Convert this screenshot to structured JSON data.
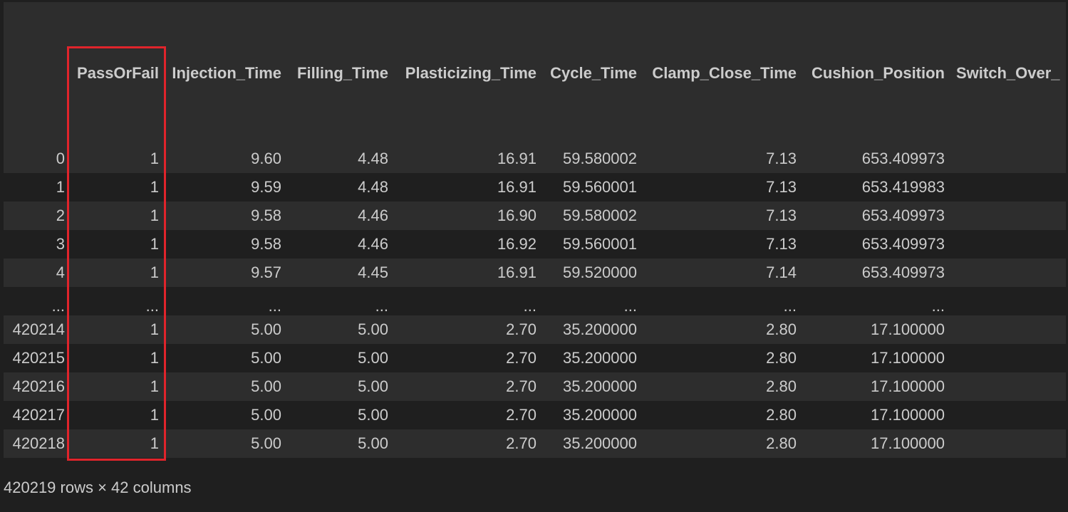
{
  "table": {
    "columns": [
      "",
      "PassOrFail",
      "Injection_Time",
      "Filling_Time",
      "Plasticizing_Time",
      "Cycle_Time",
      "Clamp_Close_Time",
      "Cushion_Position",
      "Switch_Over_"
    ],
    "rows": [
      [
        "0",
        "1",
        "9.60",
        "4.48",
        "16.91",
        "59.580002",
        "7.13",
        "653.409973",
        ""
      ],
      [
        "1",
        "1",
        "9.59",
        "4.48",
        "16.91",
        "59.560001",
        "7.13",
        "653.419983",
        ""
      ],
      [
        "2",
        "1",
        "9.58",
        "4.46",
        "16.90",
        "59.580002",
        "7.13",
        "653.409973",
        ""
      ],
      [
        "3",
        "1",
        "9.58",
        "4.46",
        "16.92",
        "59.560001",
        "7.13",
        "653.409973",
        ""
      ],
      [
        "4",
        "1",
        "9.57",
        "4.45",
        "16.91",
        "59.520000",
        "7.14",
        "653.409973",
        ""
      ],
      [
        "...",
        "...",
        "...",
        "...",
        "...",
        "...",
        "...",
        "...",
        ""
      ],
      [
        "420214",
        "1",
        "5.00",
        "5.00",
        "2.70",
        "35.200000",
        "2.80",
        "17.100000",
        ""
      ],
      [
        "420215",
        "1",
        "5.00",
        "5.00",
        "2.70",
        "35.200000",
        "2.80",
        "17.100000",
        ""
      ],
      [
        "420216",
        "1",
        "5.00",
        "5.00",
        "2.70",
        "35.200000",
        "2.80",
        "17.100000",
        ""
      ],
      [
        "420217",
        "1",
        "5.00",
        "5.00",
        "2.70",
        "35.200000",
        "2.80",
        "17.100000",
        ""
      ],
      [
        "420218",
        "1",
        "5.00",
        "5.00",
        "2.70",
        "35.200000",
        "2.80",
        "17.100000",
        ""
      ]
    ]
  },
  "shape_text": "420219 rows × 42 columns",
  "highlight": {
    "column": "PassOrFail",
    "color": "#e0242b"
  }
}
